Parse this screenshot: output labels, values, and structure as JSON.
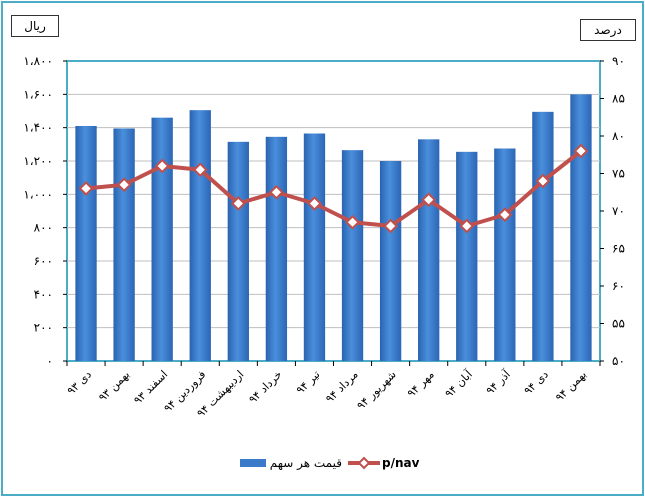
{
  "chart_data": {
    "type": "bar+line",
    "left_axis_unit": "ریال",
    "right_axis_unit": "درصد",
    "categories": [
      "دی ۹۳",
      "بهمن ۹۳",
      "اسفند ۹۳",
      "فروردین ۹۴",
      "اردیبهشت ۹۴",
      "خرداد ۹۴",
      "تیر ۹۴",
      "مرداد ۹۴",
      "شهریور ۹۴",
      "مهر ۹۴",
      "آبان ۹۴",
      "آذر ۹۴",
      "دی ۹۴",
      "بهمن ۹۴"
    ],
    "series": [
      {
        "name": "قیمت هر سهم",
        "type": "bar",
        "axis": "left",
        "color": "#3a7ac8",
        "values": [
          1410,
          1395,
          1460,
          1505,
          1315,
          1345,
          1365,
          1265,
          1200,
          1330,
          1255,
          1275,
          1495,
          1600
        ]
      },
      {
        "name": "p/nav",
        "type": "line",
        "axis": "right",
        "color": "#c0504d",
        "values": [
          73.0,
          73.5,
          76.0,
          75.5,
          71.0,
          72.5,
          71.0,
          68.5,
          68.0,
          71.5,
          68.0,
          69.5,
          74.0,
          78.0
        ]
      }
    ],
    "left_axis": {
      "ylim": [
        0,
        1800
      ],
      "ticks": [
        "۰",
        "۲۰۰",
        "۴۰۰",
        "۶۰۰",
        "۸۰۰",
        "۱،۰۰۰",
        "۱،۲۰۰",
        "۱،۴۰۰",
        "۱،۶۰۰",
        "۱،۸۰۰"
      ]
    },
    "right_axis": {
      "ylim": [
        50,
        90
      ],
      "ticks": [
        "۵۰",
        "۵۵",
        "۶۰",
        "۶۵",
        "۷۰",
        "۷۵",
        "۸۰",
        "۸۵",
        "۹۰"
      ]
    },
    "grid": true,
    "legend": "bottom"
  }
}
